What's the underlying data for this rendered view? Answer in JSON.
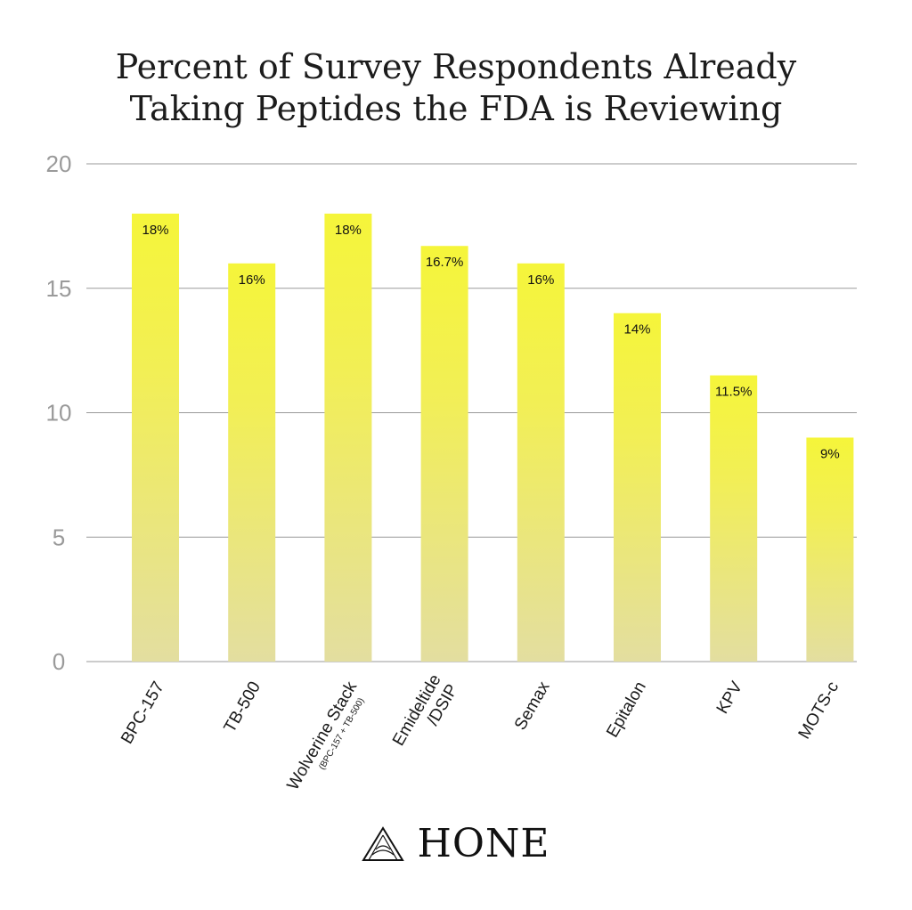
{
  "title_line1": "Percent of Survey Respondents Already",
  "title_line2": "Taking Peptides the FDA is Reviewing",
  "brand": "HONE",
  "colors": {
    "bar_top": "#f5f53a",
    "bar_bottom": "#e3dea0",
    "grid": "#9a9a9a",
    "tick": "#9a9a9a"
  },
  "chart_data": {
    "type": "bar",
    "categories": [
      "BPC-157",
      "TB-500",
      "Wolverine Stack",
      "Emideltide /DSIP",
      "Semax",
      "Epitalon",
      "KPV",
      "MOTS-c"
    ],
    "category_subtitles": [
      "",
      "",
      "(BPC-157 + TB-500)",
      "",
      "",
      "",
      "",
      ""
    ],
    "values": [
      18,
      16,
      18,
      16.7,
      16,
      14,
      11.5,
      9
    ],
    "data_labels": [
      "18%",
      "16%",
      "18%",
      "16.7%",
      "16%",
      "14%",
      "11.5%",
      "9%"
    ],
    "yticks": [
      "0",
      "5",
      "10",
      "15",
      "20"
    ],
    "ylim": [
      0,
      20
    ],
    "grid": true,
    "legend": "none"
  }
}
